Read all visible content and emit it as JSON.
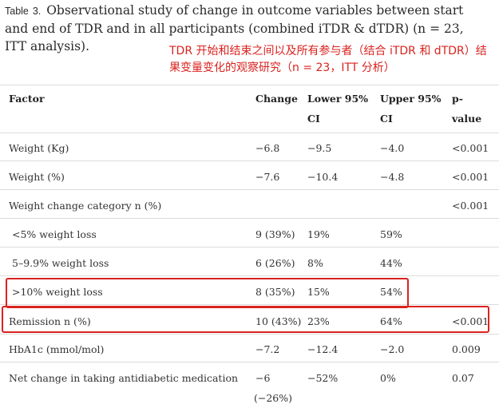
{
  "caption": {
    "label": "Table",
    "number": "3.",
    "text": "Observational study of change in outcome variables between start and end of TDR and in all participants (combined iTDR & dTDR) (n = 23, ITT analysis)."
  },
  "annotation_cn": "TDR 开始和结束之间以及所有参与者（结合 iTDR 和 dTDR）结果变量变化的观察研究（n = 23，ITT 分析）",
  "table": {
    "headers": {
      "factor": "Factor",
      "change": "Change",
      "lower_line1": "Lower 95%",
      "lower_line2": "CI",
      "upper_line1": "Upper 95%",
      "upper_line2": "CI",
      "p_line1": "p-",
      "p_line2": "value"
    },
    "rows": [
      {
        "factor": "Weight (Kg)",
        "change": "−6.8",
        "lower": "−9.5",
        "upper": "−4.0",
        "p": "<0.001",
        "change2": ""
      },
      {
        "factor": "Weight (%)",
        "change": "−7.6",
        "lower": "−10.4",
        "upper": "−4.8",
        "p": "<0.001",
        "change2": ""
      },
      {
        "factor": "Weight change category n (%)",
        "change": "",
        "lower": "",
        "upper": "",
        "p": "<0.001",
        "change2": ""
      },
      {
        "factor": "<5% weight loss",
        "change": "9 (39%)",
        "lower": "19%",
        "upper": "59%",
        "p": "",
        "change2": ""
      },
      {
        "factor": "5–9.9% weight loss",
        "change": "6 (26%)",
        "lower": "8%",
        "upper": "44%",
        "p": "",
        "change2": ""
      },
      {
        "factor": ">10% weight loss",
        "change": "8 (35%)",
        "lower": "15%",
        "upper": "54%",
        "p": "",
        "change2": ""
      },
      {
        "factor": "Remission n (%)",
        "change": "10 (43%)",
        "lower": "23%",
        "upper": "64%",
        "p": "<0.001",
        "change2": ""
      },
      {
        "factor": "HbA1c (mmol/mol)",
        "change": "−7.2",
        "lower": "−12.4",
        "upper": "−2.0",
        "p": "0.009",
        "change2": ""
      },
      {
        "factor": "Net change in taking antidiabetic medication",
        "change": "−6",
        "lower": "−52%",
        "upper": "0%",
        "p": "0.07",
        "change2": "(−26%)"
      }
    ]
  },
  "colors": {
    "annotation": "#d9231f",
    "highlight_border": "#d9231f",
    "rule": "#dcdcdc"
  }
}
